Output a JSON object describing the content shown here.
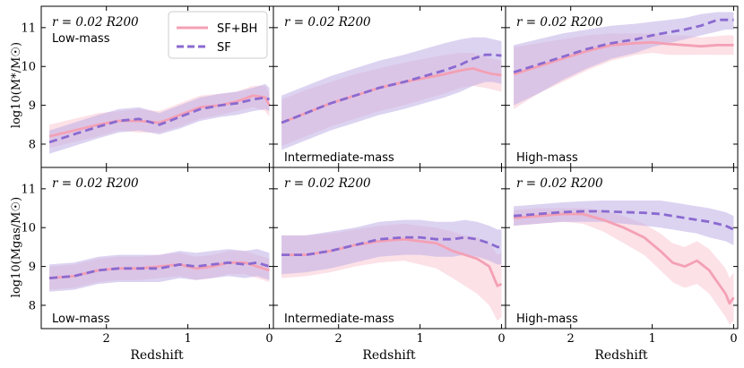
{
  "chart_data": {
    "type": "line",
    "layout": "2x3 panel grid, shared x axis per column, shared y axis per row",
    "xlabel": "Redshift",
    "xlim": [
      2.8,
      -0.05
    ],
    "xticks": [
      "2",
      "1",
      "0"
    ],
    "legend": {
      "position": "top-left of first panel",
      "entries": [
        {
          "label": "SF+BH",
          "style": "solid",
          "color": "#f4a0b4"
        },
        {
          "label": "SF",
          "style": "dashed",
          "color": "#8a6ad0"
        }
      ]
    },
    "colors": {
      "sfbh": "#f4a0b4",
      "sfbh_band": "#f9c8d4",
      "sf": "#8a6ad0",
      "sf_band": "#c0aee6"
    },
    "rows": [
      {
        "ylabel": "log10(M*/M☉)",
        "ylim": [
          7.4,
          11.55
        ],
        "yticks": [
          "8",
          "9",
          "10",
          "11"
        ]
      },
      {
        "ylabel": "log10(Mgas/M☉)",
        "ylim": [
          7.4,
          11.55
        ],
        "yticks": [
          "8",
          "9",
          "10",
          "11"
        ]
      }
    ],
    "radius_label": "r = 0.02 R200",
    "panels": [
      {
        "row": 0,
        "col": 0,
        "mass_label": "Low-mass",
        "label_pos": "top",
        "series": [
          {
            "name": "SF+BH",
            "x": [
              2.7,
              2.4,
              2.1,
              1.85,
              1.6,
              1.35,
              1.1,
              0.85,
              0.6,
              0.4,
              0.2,
              0.05,
              0.0
            ],
            "y": [
              8.2,
              8.35,
              8.5,
              8.6,
              8.6,
              8.55,
              8.75,
              8.95,
              9.0,
              9.1,
              9.25,
              9.2,
              9.0
            ],
            "lo": [
              7.9,
              8.05,
              8.2,
              8.35,
              8.3,
              8.3,
              8.45,
              8.65,
              8.75,
              8.85,
              8.95,
              8.85,
              8.7
            ],
            "hi": [
              8.5,
              8.65,
              8.8,
              8.85,
              8.9,
              8.85,
              9.05,
              9.25,
              9.3,
              9.35,
              9.5,
              9.5,
              9.3
            ]
          },
          {
            "name": "SF",
            "x": [
              2.7,
              2.4,
              2.1,
              1.85,
              1.6,
              1.35,
              1.1,
              0.85,
              0.6,
              0.4,
              0.2,
              0.05,
              0.0
            ],
            "y": [
              8.05,
              8.25,
              8.45,
              8.6,
              8.65,
              8.5,
              8.7,
              8.9,
              9.0,
              9.05,
              9.15,
              9.2,
              9.15
            ],
            "lo": [
              7.75,
              7.95,
              8.15,
              8.3,
              8.35,
              8.25,
              8.4,
              8.6,
              8.7,
              8.75,
              8.85,
              8.9,
              8.85
            ],
            "hi": [
              8.35,
              8.55,
              8.75,
              8.9,
              8.95,
              8.8,
              9.0,
              9.2,
              9.3,
              9.35,
              9.45,
              9.55,
              9.45
            ]
          }
        ]
      },
      {
        "row": 0,
        "col": 1,
        "mass_label": "Intermediate-mass",
        "label_pos": "bottom",
        "series": [
          {
            "name": "SF+BH",
            "x": [
              2.7,
              2.4,
              2.1,
              1.8,
              1.5,
              1.2,
              0.95,
              0.7,
              0.5,
              0.35,
              0.2,
              0.1,
              0.0
            ],
            "y": [
              8.55,
              8.8,
              9.05,
              9.25,
              9.45,
              9.6,
              9.7,
              9.8,
              9.9,
              9.95,
              9.85,
              9.8,
              9.78
            ],
            "lo": [
              7.95,
              8.2,
              8.45,
              8.65,
              8.85,
              9.0,
              9.15,
              9.3,
              9.45,
              9.5,
              9.45,
              9.4,
              9.35
            ],
            "hi": [
              9.15,
              9.4,
              9.6,
              9.8,
              9.95,
              10.1,
              10.2,
              10.3,
              10.35,
              10.35,
              10.25,
              10.2,
              10.15
            ]
          },
          {
            "name": "SF",
            "x": [
              2.7,
              2.4,
              2.1,
              1.8,
              1.5,
              1.2,
              0.95,
              0.7,
              0.5,
              0.35,
              0.2,
              0.1,
              0.0
            ],
            "y": [
              8.55,
              8.8,
              9.05,
              9.25,
              9.45,
              9.6,
              9.75,
              9.9,
              10.05,
              10.2,
              10.3,
              10.3,
              10.28
            ],
            "lo": [
              7.85,
              8.1,
              8.35,
              8.55,
              8.75,
              8.9,
              9.05,
              9.2,
              9.35,
              9.5,
              9.6,
              9.6,
              9.55
            ],
            "hi": [
              9.25,
              9.5,
              9.75,
              9.95,
              10.15,
              10.3,
              10.45,
              10.6,
              10.7,
              10.75,
              10.75,
              10.7,
              10.65
            ]
          }
        ]
      },
      {
        "row": 0,
        "col": 2,
        "mass_label": "High-mass",
        "label_pos": "bottom",
        "series": [
          {
            "name": "SF+BH",
            "x": [
              2.7,
              2.4,
              2.1,
              1.8,
              1.5,
              1.2,
              1.0,
              0.8,
              0.6,
              0.4,
              0.2,
              0.1,
              0.0
            ],
            "y": [
              9.8,
              10.0,
              10.2,
              10.4,
              10.55,
              10.6,
              10.62,
              10.58,
              10.55,
              10.52,
              10.55,
              10.55,
              10.55
            ],
            "lo": [
              8.9,
              9.3,
              9.6,
              9.9,
              10.15,
              10.3,
              10.35,
              10.3,
              10.3,
              10.3,
              10.3,
              10.3,
              10.3
            ],
            "hi": [
              10.5,
              10.6,
              10.7,
              10.8,
              10.85,
              10.85,
              10.85,
              10.8,
              10.8,
              10.75,
              10.78,
              10.8,
              10.8
            ]
          },
          {
            "name": "SF",
            "x": [
              2.7,
              2.4,
              2.1,
              1.8,
              1.5,
              1.2,
              1.0,
              0.8,
              0.6,
              0.4,
              0.2,
              0.1,
              0.0
            ],
            "y": [
              9.85,
              10.05,
              10.25,
              10.45,
              10.6,
              10.7,
              10.8,
              10.88,
              10.95,
              11.05,
              11.2,
              11.2,
              11.2
            ],
            "lo": [
              9.0,
              9.3,
              9.65,
              9.95,
              10.2,
              10.35,
              10.5,
              10.6,
              10.7,
              10.8,
              10.9,
              10.95,
              10.95
            ],
            "hi": [
              10.55,
              10.7,
              10.85,
              10.95,
              11.05,
              11.1,
              11.15,
              11.2,
              11.25,
              11.35,
              11.4,
              11.4,
              11.4
            ]
          }
        ]
      },
      {
        "row": 1,
        "col": 0,
        "mass_label": "Low-mass",
        "label_pos": "bottom",
        "series": [
          {
            "name": "SF+BH",
            "x": [
              2.7,
              2.4,
              2.1,
              1.85,
              1.6,
              1.35,
              1.1,
              0.9,
              0.7,
              0.5,
              0.3,
              0.15,
              0.0
            ],
            "y": [
              8.7,
              8.75,
              8.9,
              8.95,
              8.95,
              9.0,
              9.05,
              8.95,
              9.0,
              9.1,
              9.1,
              9.0,
              8.9
            ],
            "lo": [
              8.4,
              8.45,
              8.6,
              8.65,
              8.65,
              8.7,
              8.75,
              8.65,
              8.7,
              8.8,
              8.8,
              8.7,
              8.6
            ],
            "hi": [
              9.0,
              9.05,
              9.2,
              9.25,
              9.25,
              9.3,
              9.35,
              9.25,
              9.3,
              9.4,
              9.4,
              9.3,
              9.2
            ]
          },
          {
            "name": "SF",
            "x": [
              2.7,
              2.4,
              2.1,
              1.85,
              1.6,
              1.35,
              1.1,
              0.9,
              0.7,
              0.5,
              0.3,
              0.15,
              0.0
            ],
            "y": [
              8.7,
              8.75,
              8.9,
              8.95,
              8.95,
              8.95,
              9.05,
              9.0,
              9.05,
              9.1,
              9.05,
              9.1,
              9.0
            ],
            "lo": [
              8.35,
              8.4,
              8.55,
              8.6,
              8.6,
              8.6,
              8.7,
              8.65,
              8.7,
              8.75,
              8.7,
              8.75,
              8.65
            ],
            "hi": [
              9.05,
              9.1,
              9.25,
              9.3,
              9.3,
              9.3,
              9.4,
              9.35,
              9.4,
              9.45,
              9.4,
              9.45,
              9.35
            ]
          }
        ]
      },
      {
        "row": 1,
        "col": 1,
        "mass_label": "Intermediate-mass",
        "label_pos": "bottom",
        "series": [
          {
            "name": "SF+BH",
            "x": [
              2.7,
              2.4,
              2.1,
              1.8,
              1.5,
              1.2,
              1.0,
              0.8,
              0.6,
              0.45,
              0.3,
              0.15,
              0.05,
              0.0
            ],
            "y": [
              9.3,
              9.3,
              9.4,
              9.55,
              9.65,
              9.7,
              9.65,
              9.6,
              9.4,
              9.3,
              9.2,
              9.0,
              8.5,
              8.55
            ],
            "lo": [
              8.7,
              8.75,
              8.85,
              9.0,
              9.1,
              9.15,
              9.05,
              8.95,
              8.7,
              8.5,
              8.3,
              8.0,
              7.6,
              7.7
            ],
            "hi": [
              9.8,
              9.8,
              9.85,
              9.95,
              10.05,
              10.1,
              10.05,
              10.0,
              9.9,
              9.8,
              9.75,
              9.6,
              9.3,
              9.35
            ]
          },
          {
            "name": "SF",
            "x": [
              2.7,
              2.4,
              2.1,
              1.8,
              1.5,
              1.2,
              1.0,
              0.8,
              0.6,
              0.45,
              0.3,
              0.15,
              0.05,
              0.0
            ],
            "y": [
              9.3,
              9.3,
              9.4,
              9.55,
              9.7,
              9.75,
              9.75,
              9.7,
              9.7,
              9.75,
              9.7,
              9.6,
              9.5,
              9.5
            ],
            "lo": [
              8.8,
              8.85,
              8.95,
              9.1,
              9.25,
              9.3,
              9.3,
              9.25,
              9.25,
              9.3,
              9.25,
              9.15,
              9.05,
              9.05
            ],
            "hi": [
              9.8,
              9.8,
              9.9,
              10.0,
              10.15,
              10.2,
              10.2,
              10.15,
              10.15,
              10.2,
              10.15,
              10.05,
              9.95,
              9.95
            ]
          }
        ]
      },
      {
        "row": 1,
        "col": 2,
        "mass_label": "High-mass",
        "label_pos": "bottom",
        "series": [
          {
            "name": "SF+BH",
            "x": [
              2.7,
              2.4,
              2.1,
              1.85,
              1.6,
              1.35,
              1.1,
              0.9,
              0.75,
              0.6,
              0.45,
              0.3,
              0.2,
              0.1,
              0.05,
              0.0
            ],
            "y": [
              10.25,
              10.3,
              10.35,
              10.35,
              10.2,
              10.0,
              9.75,
              9.4,
              9.1,
              9.0,
              9.15,
              8.9,
              8.6,
              8.3,
              8.05,
              8.2
            ],
            "lo": [
              10.05,
              10.1,
              10.15,
              10.1,
              9.9,
              9.6,
              9.3,
              8.9,
              8.6,
              8.45,
              8.55,
              8.3,
              8.0,
              7.7,
              7.5,
              7.6
            ],
            "hi": [
              10.45,
              10.5,
              10.5,
              10.5,
              10.45,
              10.3,
              10.1,
              9.85,
              9.6,
              9.5,
              9.65,
              9.45,
              9.2,
              8.95,
              8.7,
              8.85
            ]
          },
          {
            "name": "SF",
            "x": [
              2.7,
              2.4,
              2.1,
              1.85,
              1.6,
              1.35,
              1.1,
              0.9,
              0.75,
              0.6,
              0.45,
              0.3,
              0.2,
              0.1,
              0.05,
              0.0
            ],
            "y": [
              10.3,
              10.35,
              10.4,
              10.42,
              10.42,
              10.4,
              10.38,
              10.35,
              10.3,
              10.25,
              10.2,
              10.15,
              10.1,
              10.05,
              10.0,
              9.95
            ],
            "lo": [
              10.05,
              10.1,
              10.15,
              10.15,
              10.15,
              10.1,
              10.05,
              10.0,
              9.95,
              9.9,
              9.85,
              9.75,
              9.7,
              9.65,
              9.6,
              9.55
            ],
            "hi": [
              10.55,
              10.6,
              10.65,
              10.68,
              10.7,
              10.7,
              10.7,
              10.7,
              10.65,
              10.6,
              10.55,
              10.5,
              10.45,
              10.4,
              10.35,
              10.3
            ]
          }
        ]
      }
    ]
  }
}
